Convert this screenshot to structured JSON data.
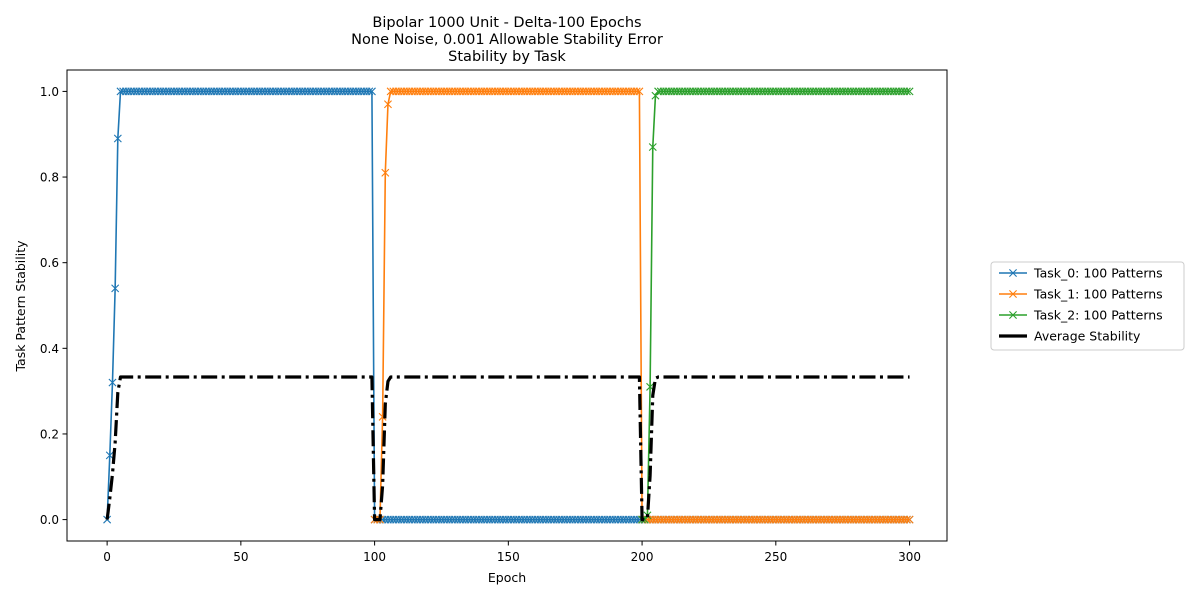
{
  "chart_data": {
    "type": "line",
    "title_lines": [
      "Bipolar 1000 Unit - Delta-100 Epochs",
      "None Noise, 0.001 Allowable Stability Error",
      "Stability by Task"
    ],
    "xlabel": "Epoch",
    "ylabel": "Task Pattern Stability",
    "xlim": [
      -15,
      314
    ],
    "ylim": [
      -0.05,
      1.05
    ],
    "xticks": [
      0,
      50,
      100,
      150,
      200,
      250,
      300
    ],
    "yticks": [
      0.0,
      0.2,
      0.4,
      0.6,
      0.8,
      1.0
    ],
    "ytick_labels": [
      "0.0",
      "0.2",
      "0.4",
      "0.6",
      "0.8",
      "1.0"
    ],
    "legend_position": "outside-right",
    "grid": false,
    "series": [
      {
        "name": "Task_0: 100 Patterns",
        "color": "#1f77b4",
        "marker": "x",
        "style": "solid",
        "epoch_range": [
          0,
          300
        ],
        "points": [
          [
            0,
            0.0
          ],
          [
            1,
            0.15
          ],
          [
            2,
            0.32
          ],
          [
            3,
            0.54
          ],
          [
            4,
            0.89
          ],
          [
            5,
            1.0
          ],
          [
            99,
            1.0
          ],
          [
            100,
            0.0
          ],
          [
            300,
            0.0
          ]
        ]
      },
      {
        "name": "Task_1: 100 Patterns",
        "color": "#ff7f0e",
        "marker": "x",
        "style": "solid",
        "epoch_range": [
          100,
          300
        ],
        "points": [
          [
            100,
            0.0
          ],
          [
            101,
            0.0
          ],
          [
            102,
            0.0
          ],
          [
            103,
            0.24
          ],
          [
            104,
            0.81
          ],
          [
            105,
            0.97
          ],
          [
            106,
            1.0
          ],
          [
            199,
            1.0
          ],
          [
            200,
            0.0
          ],
          [
            300,
            0.0
          ]
        ]
      },
      {
        "name": "Task_2: 100 Patterns",
        "color": "#2ca02c",
        "marker": "x",
        "style": "solid",
        "epoch_range": [
          200,
          300
        ],
        "points": [
          [
            200,
            0.0
          ],
          [
            201,
            0.0
          ],
          [
            202,
            0.01
          ],
          [
            203,
            0.31
          ],
          [
            204,
            0.87
          ],
          [
            205,
            0.99
          ],
          [
            206,
            1.0
          ],
          [
            300,
            1.0
          ]
        ]
      },
      {
        "name": "Average Stability",
        "color": "#000000",
        "marker": "none",
        "style": "dashdot",
        "points": [
          [
            0,
            0.0
          ],
          [
            1,
            0.05
          ],
          [
            2,
            0.107
          ],
          [
            3,
            0.18
          ],
          [
            4,
            0.297
          ],
          [
            5,
            0.333
          ],
          [
            99,
            0.333
          ],
          [
            100,
            0.0
          ],
          [
            102,
            0.0
          ],
          [
            103,
            0.08
          ],
          [
            104,
            0.27
          ],
          [
            105,
            0.323
          ],
          [
            106,
            0.333
          ],
          [
            199,
            0.333
          ],
          [
            200,
            0.0
          ],
          [
            201,
            0.0
          ],
          [
            202,
            0.003
          ],
          [
            203,
            0.103
          ],
          [
            204,
            0.29
          ],
          [
            205,
            0.33
          ],
          [
            206,
            0.333
          ],
          [
            300,
            0.333
          ]
        ]
      }
    ]
  }
}
